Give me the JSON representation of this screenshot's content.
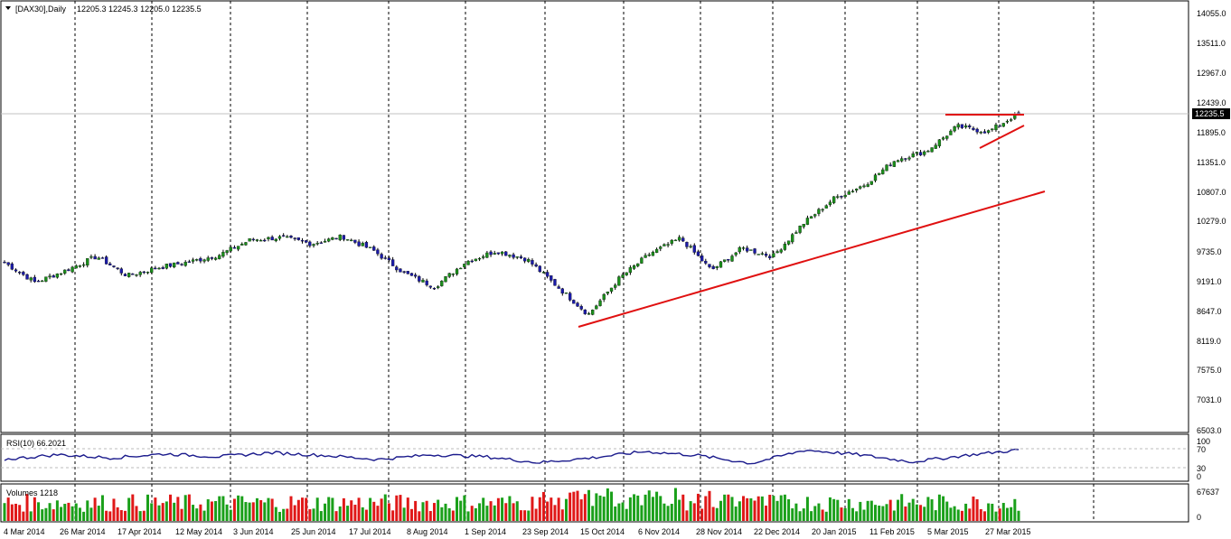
{
  "main_panel": {
    "title": "[DAX30],Daily",
    "ohlc": "12205.3 12245.3 12205.0 12235.5",
    "price_axis": [
      "14055.0",
      "13511.0",
      "12967.0",
      "12439.0",
      "11895.0",
      "11351.0",
      "10807.0",
      "10279.0",
      "9735.0",
      "9191.0",
      "8647.0",
      "8119.0",
      "7575.0",
      "7031.0",
      "6503.0"
    ],
    "current_price_label": "12235.5"
  },
  "rsi_panel": {
    "title": "RSI(10) 66.2021",
    "levels": [
      "100",
      "70",
      "30",
      "0"
    ]
  },
  "volume_panel": {
    "title": "Volumes 1218",
    "levels": [
      "67637",
      "0"
    ]
  },
  "time_axis": [
    "4 Mar 2014",
    "26 Mar 2014",
    "17 Apr 2014",
    "12 May 2014",
    "3 Jun 2014",
    "25 Jun 2014",
    "17 Jul 2014",
    "8 Aug 2014",
    "1 Sep 2014",
    "23 Sep 2014",
    "15 Oct 2014",
    "6 Nov 2014",
    "28 Nov 2014",
    "22 Dec 2014",
    "20 Jan 2015",
    "11 Feb 2015",
    "5 Mar 2015",
    "27 Mar 2015"
  ],
  "colors": {
    "bull": "#1a8f1a",
    "bear": "#1a1aa8",
    "trendline": "#e01010",
    "rsi_line": "#1a1a8c",
    "vol_up": "#1aa01a",
    "vol_down": "#e01818",
    "price_tag_bg": "#000000",
    "price_tag_fg": "#ffffff"
  },
  "chart_data": {
    "type": "candlestick",
    "x_range": [
      "4 Mar 2014",
      "~1 Apr 2015"
    ],
    "ylim": [
      6503,
      14055
    ],
    "series": [
      {
        "x": "4 Mar 2014",
        "y": 9540
      },
      {
        "x": "18 Mar 2014",
        "y": 9180
      },
      {
        "x": "26 Mar 2014",
        "y": 9400
      },
      {
        "x": "4 Apr 2014",
        "y": 9650
      },
      {
        "x": "11 Apr 2014",
        "y": 9300
      },
      {
        "x": "17 Apr 2014",
        "y": 9450
      },
      {
        "x": "5 May 2014",
        "y": 9550
      },
      {
        "x": "12 May 2014",
        "y": 9680
      },
      {
        "x": "3 Jun 2014",
        "y": 9950
      },
      {
        "x": "20 Jun 2014",
        "y": 9990
      },
      {
        "x": "25 Jun 2014",
        "y": 9880
      },
      {
        "x": "3 Jul 2014",
        "y": 10010
      },
      {
        "x": "17 Jul 2014",
        "y": 9760
      },
      {
        "x": "1 Aug 2014",
        "y": 9350
      },
      {
        "x": "8 Aug 2014",
        "y": 9100
      },
      {
        "x": "1 Sep 2014",
        "y": 9550
      },
      {
        "x": "17 Sep 2014",
        "y": 9750
      },
      {
        "x": "23 Sep 2014",
        "y": 9600
      },
      {
        "x": "7 Oct 2014",
        "y": 9100
      },
      {
        "x": "15 Oct 2014",
        "y": 8600
      },
      {
        "x": "6 Nov 2014",
        "y": 9250
      },
      {
        "x": "20 Nov 2014",
        "y": 9700
      },
      {
        "x": "28 Nov 2014",
        "y": 9980
      },
      {
        "x": "16 Dec 2014",
        "y": 9400
      },
      {
        "x": "22 Dec 2014",
        "y": 9800
      },
      {
        "x": "9 Jan 2015",
        "y": 9650
      },
      {
        "x": "20 Jan 2015",
        "y": 10250
      },
      {
        "x": "30 Jan 2015",
        "y": 10700
      },
      {
        "x": "11 Feb 2015",
        "y": 10950
      },
      {
        "x": "26 Feb 2015",
        "y": 11400
      },
      {
        "x": "5 Mar 2015",
        "y": 11550
      },
      {
        "x": "13 Mar 2015",
        "y": 12000
      },
      {
        "x": "27 Mar 2015",
        "y": 11900
      },
      {
        "x": "1 Apr 2015",
        "y": 12235.5
      }
    ],
    "rsi": [
      48,
      60,
      52,
      62,
      55,
      65,
      58,
      48,
      60,
      55,
      40,
      52,
      68,
      58,
      38,
      72,
      60,
      42,
      58,
      72
    ],
    "volume_max": 67637
  }
}
